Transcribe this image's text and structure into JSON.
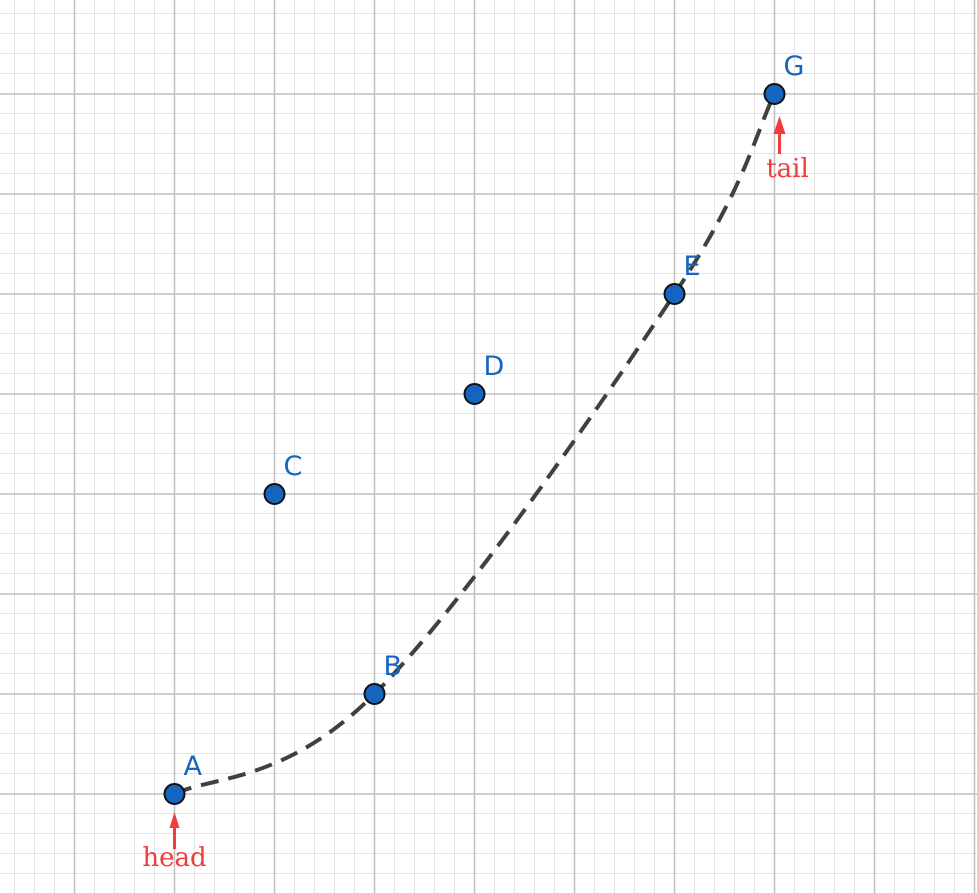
{
  "diagram": {
    "description_none": "",
    "colors": {
      "point_fill": "#1565c0",
      "point_label": "#1565c0",
      "path_stroke": "#404040",
      "annotation": "#f03c3c",
      "grid_major": "#c0c0c0",
      "grid_minor": "#e4e4e4"
    },
    "points": [
      {
        "name": "A",
        "gx": 1,
        "gy": 1
      },
      {
        "name": "B",
        "gx": 3,
        "gy": 2
      },
      {
        "name": "C",
        "gx": 2,
        "gy": 4
      },
      {
        "name": "D",
        "gx": 4,
        "gy": 5
      },
      {
        "name": "E",
        "gx": 6,
        "gy": 6
      },
      {
        "name": "G",
        "gx": 7,
        "gy": 8
      }
    ],
    "path": [
      "A",
      "B",
      "E",
      "G"
    ],
    "annotations": {
      "head": {
        "text": "head",
        "target": "A"
      },
      "tail": {
        "text": "tail",
        "target": "G"
      }
    }
  }
}
